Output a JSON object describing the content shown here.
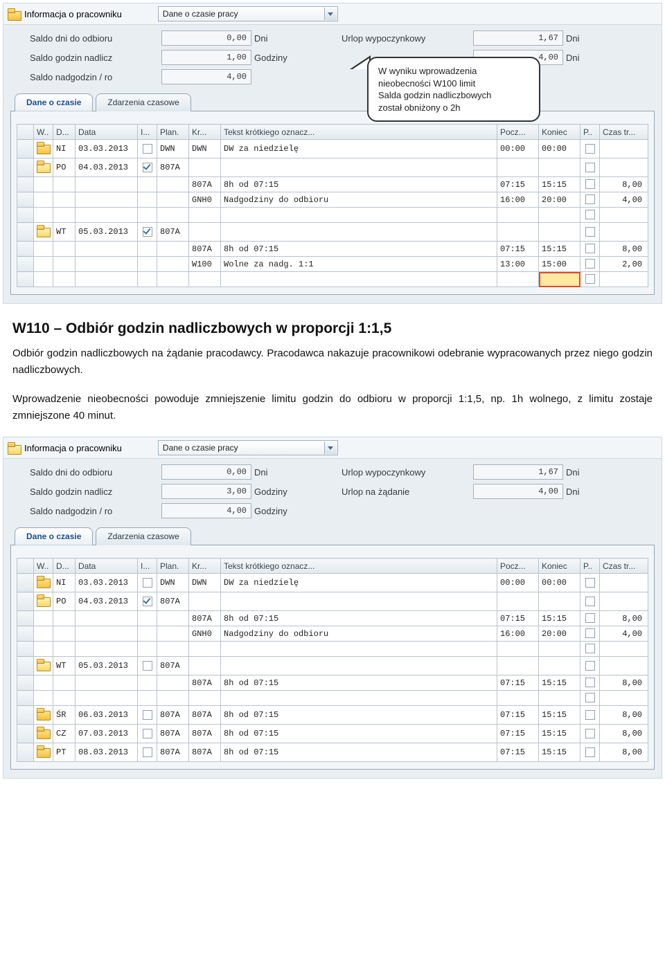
{
  "panel_title": "Informacja o pracowniku",
  "dropdown_value": "Dane o czasie pracy",
  "labels": {
    "saldo_dni": "Saldo dni do odbioru",
    "saldo_godzin": "Saldo godzin nadlicz",
    "saldo_ro": "Saldo nadgodzin / ro",
    "urlop_wyp": "Urlop wypoczynkowy",
    "urlop_zad": "Urlop na żądanie",
    "dni": "Dni",
    "godz": "Godziny"
  },
  "panel1": {
    "saldo_dni": "0,00",
    "saldo_godzin": "1,00",
    "saldo_ro": "4,00",
    "urlop_wyp": "1,67",
    "urlop_zad": "4,00"
  },
  "panel2": {
    "saldo_dni": "0,00",
    "saldo_godzin": "3,00",
    "saldo_ro": "4,00",
    "urlop_wyp": "1,67",
    "urlop_zad": "4,00"
  },
  "tabs": {
    "t1": "Dane o czasie",
    "t2": "Zdarzenia czasowe"
  },
  "columns": {
    "w": "W..",
    "d": "D...",
    "data": "Data",
    "i": "I...",
    "plan": "Plan.",
    "kr": "Kr...",
    "tekst": "Tekst krótkiego oznacz...",
    "pocz": "Pocz...",
    "koniec": "Koniec",
    "p": "P..",
    "czas": "Czas tr..."
  },
  "rows1": [
    {
      "ico": "folder",
      "d": "NI",
      "data": "03.03.2013",
      "i": "",
      "plan": "DWN",
      "kr": "DWN",
      "txt": "DW za niedzielę",
      "pocz": "00:00",
      "kon": "00:00",
      "p": "",
      "czas": ""
    },
    {
      "ico": "folder-open",
      "d": "PO",
      "data": "04.03.2013",
      "i": "chk",
      "plan": "807A",
      "kr": "",
      "txt": "",
      "pocz": "",
      "kon": "",
      "p": "",
      "czas": ""
    },
    {
      "ico": "",
      "d": "",
      "data": "",
      "i": "",
      "plan": "",
      "kr": "807A",
      "txt": "8h od 07:15",
      "pocz": "07:15",
      "kon": "15:15",
      "p": "",
      "czas": "8,00"
    },
    {
      "ico": "",
      "d": "",
      "data": "",
      "i": "",
      "plan": "",
      "kr": "GNH0",
      "txt": "Nadgodziny do odbioru",
      "pocz": "16:00",
      "kon": "20:00",
      "p": "",
      "czas": "4,00"
    },
    {
      "ico": "",
      "d": "",
      "data": "",
      "i": "",
      "plan": "",
      "kr": "",
      "txt": "",
      "pocz": "",
      "kon": "",
      "p": "",
      "czas": ""
    },
    {
      "ico": "folder-open",
      "d": "WT",
      "data": "05.03.2013",
      "i": "chk",
      "plan": "807A",
      "kr": "",
      "txt": "",
      "pocz": "",
      "kon": "",
      "p": "",
      "czas": ""
    },
    {
      "ico": "",
      "d": "",
      "data": "",
      "i": "",
      "plan": "",
      "kr": "807A",
      "txt": "8h od 07:15",
      "pocz": "07:15",
      "kon": "15:15",
      "p": "",
      "czas": "8,00"
    },
    {
      "ico": "",
      "d": "",
      "data": "",
      "i": "",
      "plan": "",
      "kr": "W100",
      "txt": "Wolne za nadg. 1:1",
      "pocz": "13:00",
      "kon": "15:00",
      "p": "",
      "czas": "2,00"
    },
    {
      "ico": "",
      "d": "",
      "data": "",
      "i": "",
      "plan": "",
      "kr": "",
      "txt": "",
      "pocz": "",
      "kon": "",
      "p": "",
      "czas": "",
      "hl": true
    }
  ],
  "rows2": [
    {
      "ico": "folder",
      "d": "NI",
      "data": "03.03.2013",
      "i": "",
      "plan": "DWN",
      "kr": "DWN",
      "txt": "DW za niedzielę",
      "pocz": "00:00",
      "kon": "00:00",
      "p": "",
      "czas": ""
    },
    {
      "ico": "folder-open",
      "d": "PO",
      "data": "04.03.2013",
      "i": "chk",
      "plan": "807A",
      "kr": "",
      "txt": "",
      "pocz": "",
      "kon": "",
      "p": "",
      "czas": ""
    },
    {
      "ico": "",
      "d": "",
      "data": "",
      "i": "",
      "plan": "",
      "kr": "807A",
      "txt": "8h od 07:15",
      "pocz": "07:15",
      "kon": "15:15",
      "p": "",
      "czas": "8,00"
    },
    {
      "ico": "",
      "d": "",
      "data": "",
      "i": "",
      "plan": "",
      "kr": "GNH0",
      "txt": "Nadgodziny do odbioru",
      "pocz": "16:00",
      "kon": "20:00",
      "p": "",
      "czas": "4,00"
    },
    {
      "ico": "",
      "d": "",
      "data": "",
      "i": "",
      "plan": "",
      "kr": "",
      "txt": "",
      "pocz": "",
      "kon": "",
      "p": "",
      "czas": ""
    },
    {
      "ico": "folder-open",
      "d": "WT",
      "data": "05.03.2013",
      "i": "",
      "plan": "807A",
      "kr": "",
      "txt": "",
      "pocz": "",
      "kon": "",
      "p": "",
      "czas": ""
    },
    {
      "ico": "",
      "d": "",
      "data": "",
      "i": "",
      "plan": "",
      "kr": "807A",
      "txt": "8h od 07:15",
      "pocz": "07:15",
      "kon": "15:15",
      "p": "",
      "czas": "8,00"
    },
    {
      "ico": "",
      "d": "",
      "data": "",
      "i": "",
      "plan": "",
      "kr": "",
      "txt": "",
      "pocz": "",
      "kon": "",
      "p": "",
      "czas": ""
    },
    {
      "ico": "folder",
      "d": "ŚR",
      "data": "06.03.2013",
      "i": "",
      "plan": "807A",
      "kr": "807A",
      "txt": "8h od 07:15",
      "pocz": "07:15",
      "kon": "15:15",
      "p": "",
      "czas": "8,00"
    },
    {
      "ico": "folder",
      "d": "CZ",
      "data": "07.03.2013",
      "i": "",
      "plan": "807A",
      "kr": "807A",
      "txt": "8h od 07:15",
      "pocz": "07:15",
      "kon": "15:15",
      "p": "",
      "czas": "8,00"
    },
    {
      "ico": "folder",
      "d": "PT",
      "data": "08.03.2013",
      "i": "",
      "plan": "807A",
      "kr": "807A",
      "txt": "8h od 07:15",
      "pocz": "07:15",
      "kon": "15:15",
      "p": "",
      "czas": "8,00"
    }
  ],
  "callout": {
    "l1": "W wyniku wprowadzenia",
    "l2": "nieobecności W100 limit",
    "l3": "Salda godzin nadliczbowych",
    "l4": "został obniżony o 2h"
  },
  "doc": {
    "heading": "W110 – Odbiór godzin nadliczbowych w proporcji 1:1,5",
    "p1": "Odbiór godzin nadliczbowych na żądanie pracodawcy. Pracodawca nakazuje pracownikowi odebranie wypracowanych przez niego godzin nadliczbowych.",
    "p2": "Wprowadzenie nieobecności powoduje zmniejszenie limitu godzin do odbioru w proporcji 1:1,5, np. 1h wolnego, z limitu zostaje zmniejszone 40 minut."
  },
  "colors": {
    "panel_bg": "#e9eef2",
    "header_bg": "#f2f6f9",
    "border": "#cfd8e0",
    "highlight_bg": "#ffe8a0",
    "highlight_border": "#e24a2b"
  }
}
